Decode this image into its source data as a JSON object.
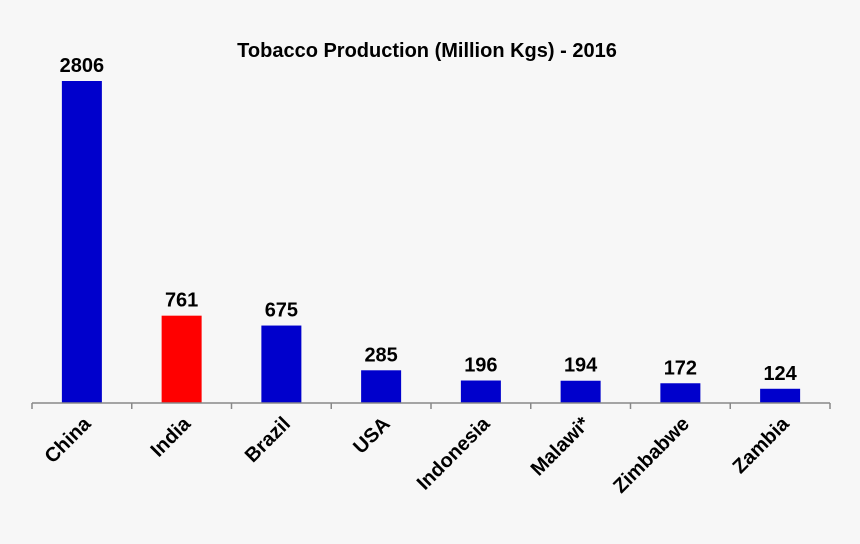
{
  "chart_data": {
    "type": "bar",
    "title": "Tobacco Production  (Million Kgs) - 2016",
    "xlabel": "",
    "ylabel": "",
    "categories": [
      "China",
      "India",
      "Brazil",
      "USA",
      "Indonesia",
      "Malawi*",
      "Zimbabwe",
      "Zambia"
    ],
    "values": [
      2806,
      761,
      675,
      285,
      196,
      194,
      172,
      124
    ],
    "value_labels": [
      "2806",
      "761",
      "675",
      "285",
      "196",
      "194",
      "172",
      "124"
    ],
    "bar_colors": [
      "#0000cc",
      "#ff0000",
      "#0000cc",
      "#0000cc",
      "#0000cc",
      "#0000cc",
      "#0000cc",
      "#0000cc"
    ],
    "ylim": [
      0,
      2806
    ],
    "grid": false,
    "legend": "none"
  }
}
